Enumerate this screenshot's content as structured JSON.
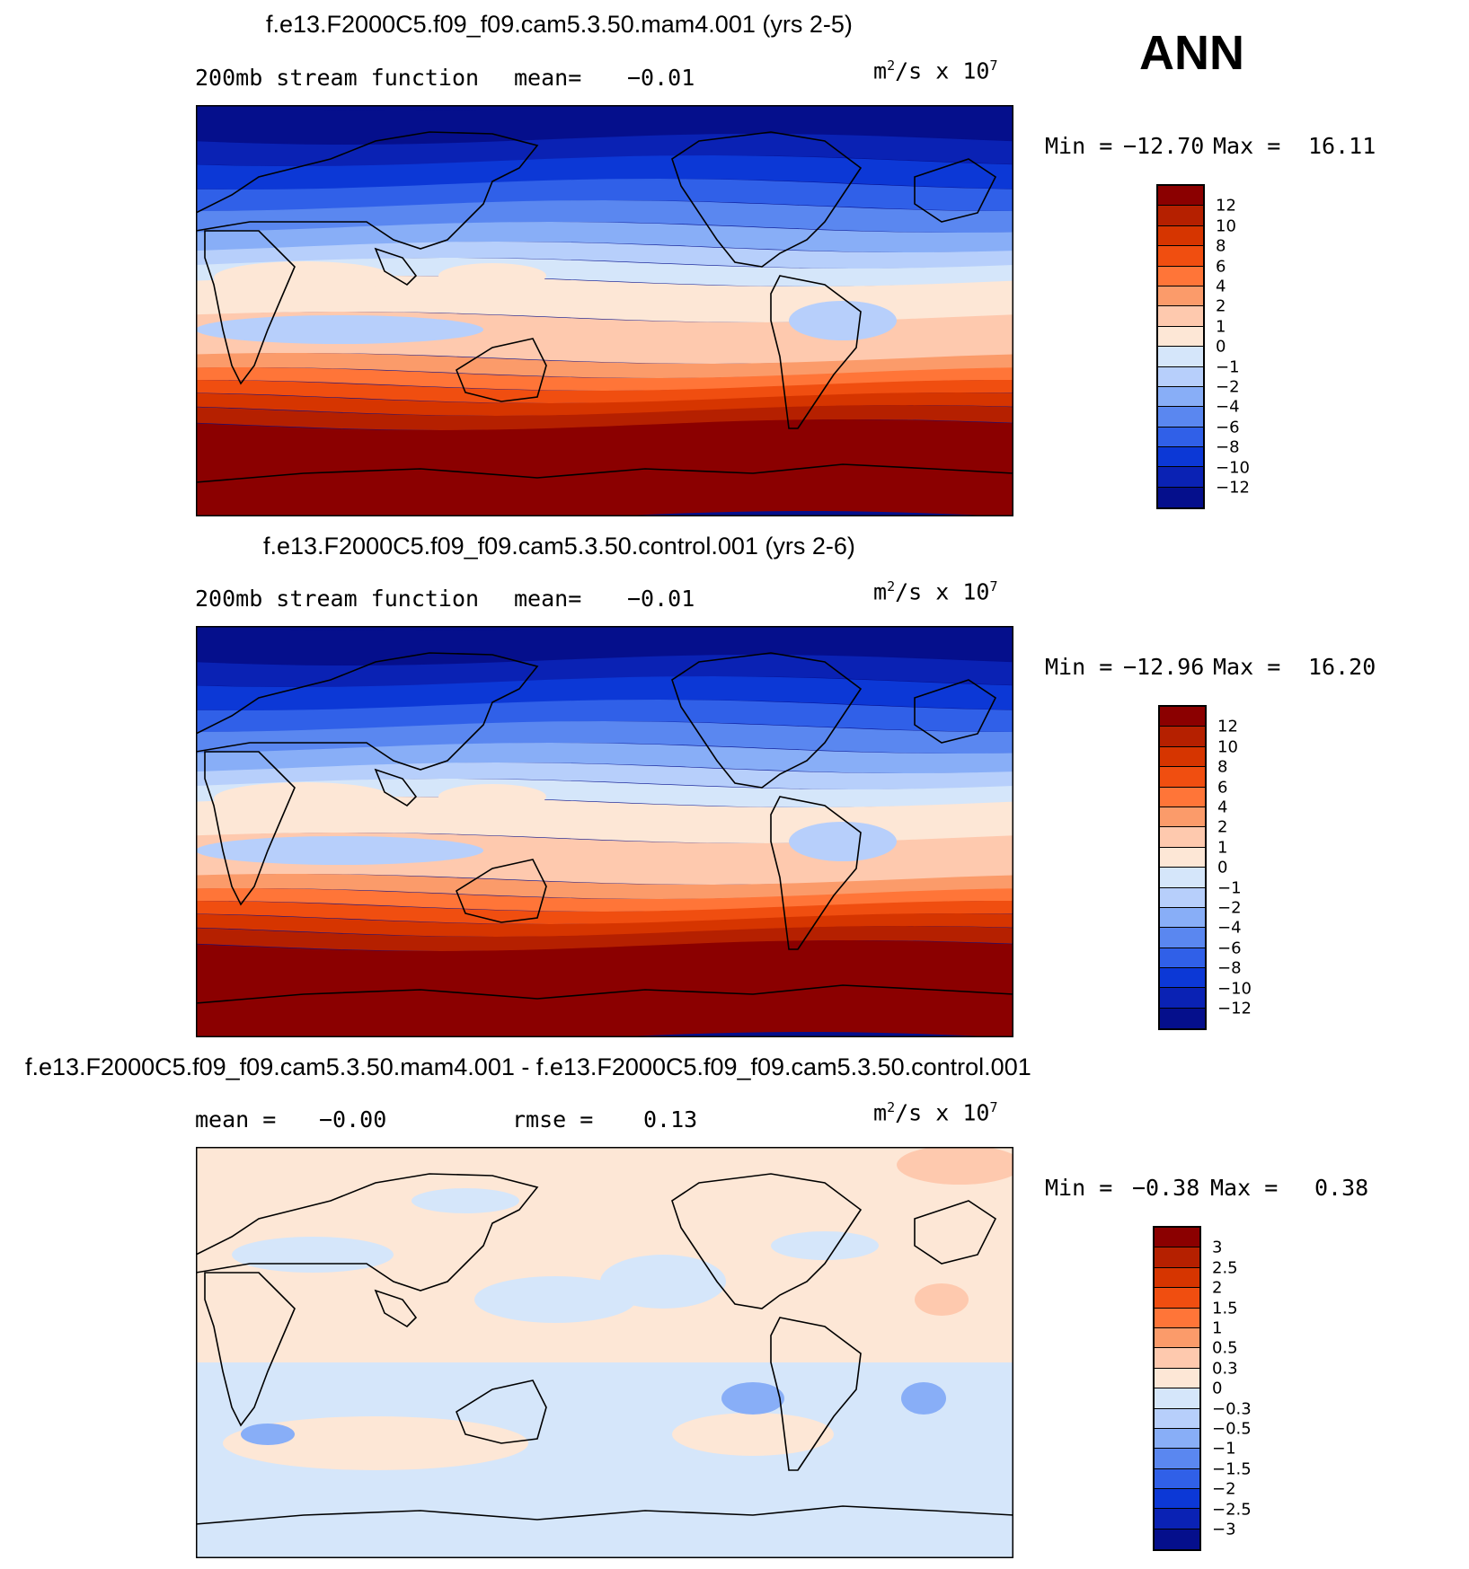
{
  "season": "ANN",
  "units": {
    "base": "m",
    "exp_area": "2",
    "rest": "/s x 10",
    "exp_scale": "7"
  },
  "panels": [
    {
      "title": "f.e13.F2000C5.f09_f09.cam5.3.50.mam4.001 (yrs 2-5)",
      "left_text": "200mb stream function",
      "mid_label": "mean=",
      "mid_value": "−0.01",
      "min_label": "Min =",
      "min_value": "−12.70",
      "max_label": "Max =",
      "max_value": "16.11",
      "field": "abs"
    },
    {
      "title": "f.e13.F2000C5.f09_f09.cam5.3.50.control.001 (yrs 2-6)",
      "left_text": "200mb stream function",
      "mid_label": "mean=",
      "mid_value": "−0.01",
      "min_label": "Min =",
      "min_value": "−12.96",
      "max_label": "Max =",
      "max_value": "16.20",
      "field": "abs"
    },
    {
      "title": "f.e13.F2000C5.f09_f09.cam5.3.50.mam4.001 - f.e13.F2000C5.f09_f09.cam5.3.50.control.001",
      "left_text": "mean =",
      "left_value": "−0.00",
      "mid_label": "rmse =",
      "mid_value": "0.13",
      "min_label": "Min =",
      "min_value": "−0.38",
      "max_label": "Max =",
      "max_value": "0.38",
      "field": "diff"
    }
  ],
  "colors": [
    "#8b0000",
    "#b52000",
    "#d63500",
    "#f04e10",
    "#ff7538",
    "#fb9b6a",
    "#fec9ae",
    "#fde7d6",
    "#d5e6fa",
    "#b7cffb",
    "#88aef7",
    "#5a87f0",
    "#3060e8",
    "#0c38d6",
    "#0a22b4",
    "#050f8c"
  ],
  "legends": {
    "abs": [
      "12",
      "10",
      "8",
      "6",
      "4",
      "2",
      "1",
      "0",
      "−1",
      "−2",
      "−4",
      "−6",
      "−8",
      "−10",
      "−12"
    ],
    "diff": [
      "3",
      "2.5",
      "2",
      "1.5",
      "1",
      "0.5",
      "0.3",
      "0",
      "−0.3",
      "−0.5",
      "−1",
      "−1.5",
      "−2",
      "−2.5",
      "−3"
    ]
  }
}
